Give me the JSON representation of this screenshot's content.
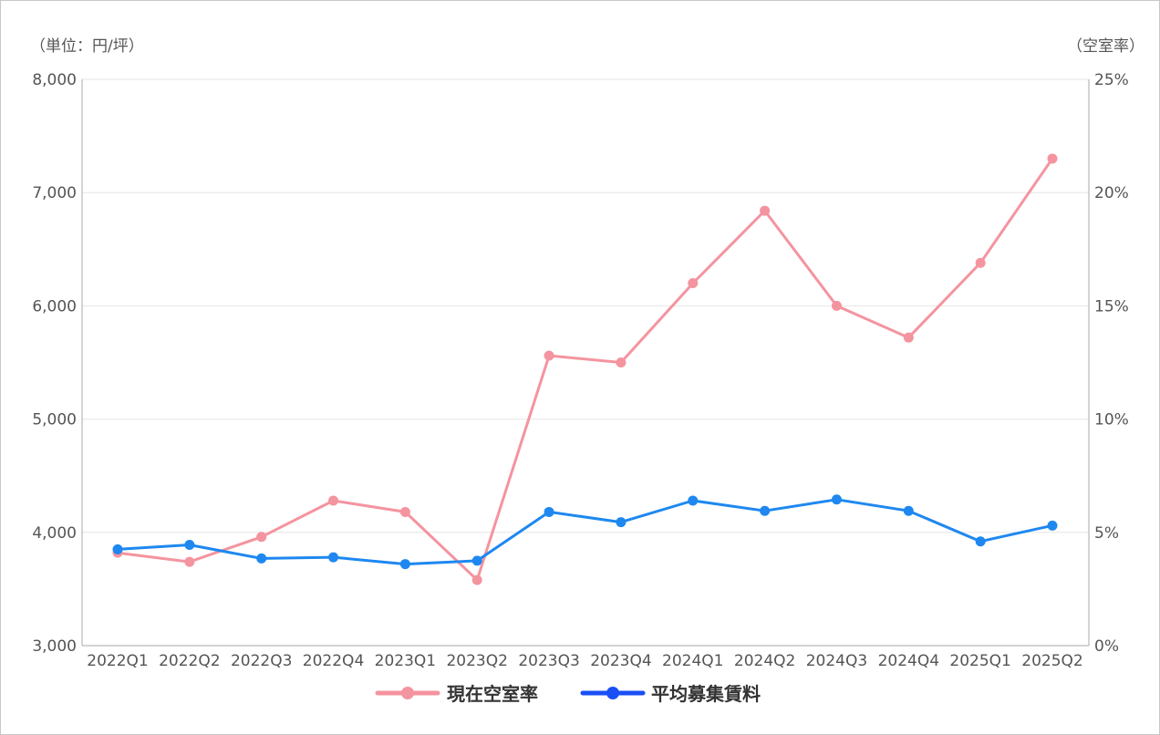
{
  "chart_data": {
    "type": "line",
    "categories": [
      "2022Q1",
      "2022Q2",
      "2022Q3",
      "2022Q4",
      "2023Q1",
      "2023Q2",
      "2023Q3",
      "2023Q4",
      "2024Q1",
      "2024Q2",
      "2024Q3",
      "2024Q4",
      "2025Q1",
      "2025Q2"
    ],
    "y_left": {
      "unit_label": "（単位：円/坪）",
      "range": [
        3000,
        8000
      ],
      "ticks": [
        "3,000",
        "4,000",
        "5,000",
        "6,000",
        "7,000",
        "8,000"
      ],
      "tick_values": [
        3000,
        4000,
        5000,
        6000,
        7000,
        8000
      ]
    },
    "y_right": {
      "unit_label": "（空室率）",
      "range": [
        0,
        25
      ],
      "ticks": [
        "0%",
        "5%",
        "10%",
        "15%",
        "20%",
        "25%"
      ],
      "tick_values": [
        0,
        5,
        10,
        15,
        20,
        25
      ]
    },
    "grid": true,
    "legend_position": "bottom",
    "series": [
      {
        "name": "現在空室率",
        "axis": "right",
        "color": "#f4949f",
        "values": [
          4.1,
          3.7,
          4.8,
          6.4,
          5.9,
          2.9,
          12.8,
          12.5,
          16.0,
          19.2,
          15.0,
          13.6,
          16.9,
          21.5
        ]
      },
      {
        "name": "平均募集賃料",
        "axis": "left",
        "color": "#1e88f0",
        "legend_color": "#1a4ff5",
        "values": [
          3850,
          3890,
          3770,
          3780,
          3720,
          3750,
          4180,
          4090,
          4280,
          4190,
          4290,
          4190,
          3920,
          4060
        ]
      }
    ]
  }
}
